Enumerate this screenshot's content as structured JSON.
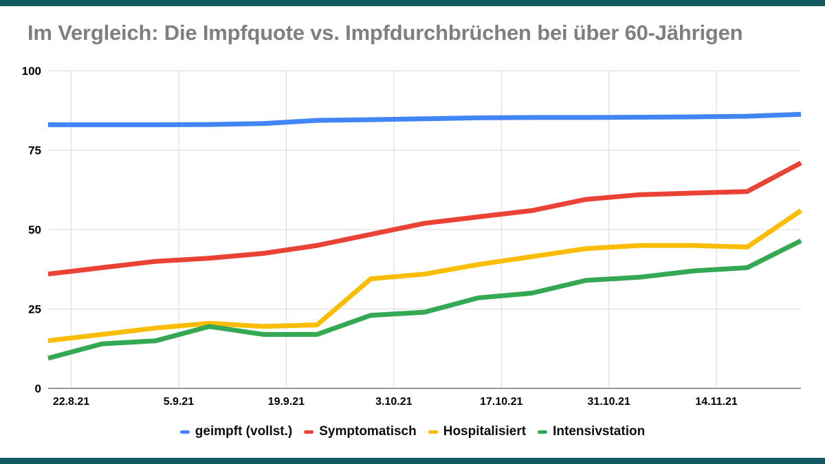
{
  "page": {
    "background_color": "#ffffff",
    "accent_bar_color": "#0f5b60"
  },
  "chart_data": {
    "type": "line",
    "title": "Im Vergleich: Die Impfquote vs. Impfdurchbrüchen bei über 60-Jährigen",
    "x_tick_labels": [
      "22.8.21",
      "5.9.21",
      "19.9.21",
      "3.10.21",
      "17.10.21",
      "31.10.21",
      "14.11.21"
    ],
    "x_dates_estimated": [
      "19.8.21",
      "26.8.21",
      "2.9.21",
      "9.9.21",
      "16.9.21",
      "23.9.21",
      "30.9.21",
      "7.10.21",
      "14.10.21",
      "21.10.21",
      "28.10.21",
      "4.11.21",
      "11.11.21",
      "18.11.21",
      "25.11.21"
    ],
    "first_tick_day_offset": 3,
    "tick_interval_days": 14,
    "total_days": 98,
    "y_ticks": [
      0,
      25,
      50,
      75,
      100
    ],
    "ylim": [
      0,
      100
    ],
    "grid": true,
    "legend_position": "bottom",
    "colors": {
      "grid": "#d9d9d9",
      "axis_line": "#757575",
      "title": "#7f7f7f",
      "tick_labels": "#000000"
    },
    "series": [
      {
        "name": "geimpft (vollst.)",
        "color": "#4285F4",
        "values": [
          83,
          83,
          83,
          83.1,
          83.4,
          84.4,
          84.6,
          84.9,
          85.2,
          85.3,
          85.3,
          85.4,
          85.5,
          85.7,
          86.3
        ]
      },
      {
        "name": "Symptomatisch",
        "color": "#EA4335",
        "values": [
          36,
          38,
          40,
          41,
          42.5,
          45,
          48.5,
          52,
          54,
          56,
          59.5,
          61,
          61.5,
          62,
          71
        ]
      },
      {
        "name": "Hospitalisiert",
        "color": "#FBBC04",
        "values": [
          15,
          17,
          19,
          20.5,
          19.5,
          20,
          34.5,
          36,
          39,
          41.5,
          44,
          45,
          45,
          44.5,
          56
        ]
      },
      {
        "name": "Intensivstation",
        "color": "#34A853",
        "values": [
          9.5,
          14,
          15,
          19.5,
          17,
          17,
          23,
          24,
          28.5,
          30,
          34,
          35,
          37,
          38,
          46.5
        ]
      }
    ]
  }
}
